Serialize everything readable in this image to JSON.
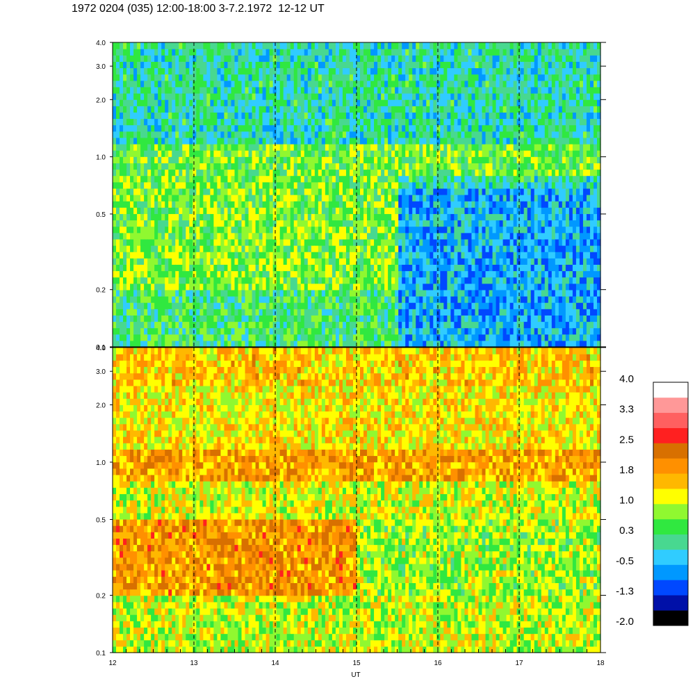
{
  "title": "1972 0204 (035) 12:00-18:00 3-7.2.1972  12-12 UT",
  "chart_data": {
    "type": "heatmap",
    "title": "1972 0204 (035) 12:00-18:00 3-7.2.1972  12-12 UT",
    "xlabel": "UT",
    "x_range": [
      12,
      18
    ],
    "x_ticks": [
      "12",
      "13",
      "14",
      "15",
      "16",
      "17",
      "18"
    ],
    "y_scale": "log",
    "colorbar": {
      "range": [
        -2.0,
        4.0
      ],
      "tick_labels": [
        "4.0",
        "3.3",
        "2.5",
        "1.8",
        "1.0",
        "0.3",
        "-0.5",
        "-1.3",
        "-2.0"
      ],
      "colors": [
        "#000000",
        "#0010a8",
        "#0048ff",
        "#0098ff",
        "#30ccff",
        "#48d890",
        "#30e840",
        "#90f830",
        "#ffff00",
        "#ffb800",
        "#ff9000",
        "#d87000",
        "#ff2020",
        "#ff6060",
        "#ff9898",
        "#ffffff"
      ]
    },
    "panels": [
      {
        "name": "top",
        "y_range": [
          0.1,
          4.0
        ],
        "y_ticks": [
          "0.1",
          "0.2",
          "0.5",
          "1.0",
          "2.0",
          "3.0",
          "4.0"
        ],
        "summary_levels": {
          "bands": [
            {
              "y": [
                0.1,
                0.2
              ],
              "t": [
                12,
                15.5
              ],
              "level": 0.3
            },
            {
              "y": [
                0.1,
                0.7
              ],
              "t": [
                15.5,
                18
              ],
              "level": -0.5
            },
            {
              "y": [
                0.2,
                0.8
              ],
              "t": [
                12,
                15.5
              ],
              "level": 0.7
            },
            {
              "y": [
                0.8,
                1.2
              ],
              "t": [
                12,
                18
              ],
              "level": 0.6
            },
            {
              "y": [
                1.2,
                4.0
              ],
              "t": [
                12,
                18
              ],
              "level": 0.0
            }
          ]
        }
      },
      {
        "name": "bottom",
        "y_range": [
          0.1,
          4.0
        ],
        "y_ticks": [
          "0.1",
          "0.2",
          "0.5",
          "1.0",
          "2.0",
          "3.0",
          "4.0"
        ],
        "summary_levels": {
          "bands": [
            {
              "y": [
                0.1,
                0.2
              ],
              "t": [
                12,
                18
              ],
              "level": 1.0
            },
            {
              "y": [
                0.2,
                0.5
              ],
              "t": [
                12,
                15
              ],
              "level": 1.9
            },
            {
              "y": [
                0.2,
                0.5
              ],
              "t": [
                15,
                18
              ],
              "level": 0.8
            },
            {
              "y": [
                0.5,
                0.8
              ],
              "t": [
                12,
                18
              ],
              "level": 1.1
            },
            {
              "y": [
                0.8,
                1.2
              ],
              "t": [
                12,
                18
              ],
              "level": 1.8
            },
            {
              "y": [
                1.2,
                2.5
              ],
              "t": [
                12,
                18
              ],
              "level": 1.3
            },
            {
              "y": [
                2.5,
                4.0
              ],
              "t": [
                12,
                18
              ],
              "level": 1.5
            }
          ]
        }
      }
    ]
  }
}
